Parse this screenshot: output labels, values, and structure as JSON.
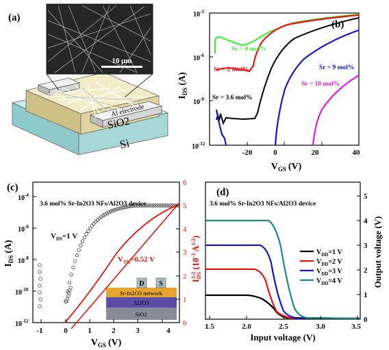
{
  "panels": {
    "a": {
      "label": "(a)",
      "scale_bar": "10 μm",
      "electrode": "Al electrode",
      "sio2": "SiO2",
      "si": "Si"
    },
    "b": {
      "label": "(b)",
      "ylabel": "I",
      "ylabel_sub": "DS",
      "ylabel_unit": "(A)",
      "xlabel": "V",
      "xlabel_sub": "GS",
      "xlabel_unit": "(V)",
      "xticks": [
        "-20",
        "0",
        "20",
        "40"
      ],
      "yticks": [
        {
          "base": "10",
          "exp": "-3"
        },
        {
          "base": "10",
          "exp": "-6"
        },
        {
          "base": "10",
          "exp": "-9"
        },
        {
          "base": "10",
          "exp": "-12"
        }
      ],
      "annotations": [
        "Sr = 0 mol%",
        "Sr = 2 mol%",
        "Sr = 3.6 mol%",
        "Sr = 9 mol%",
        "Sr = 18 mol%"
      ]
    },
    "c": {
      "label": "(c)",
      "title": "3.6 mol% Sr-In2O3 NFs/Al2O3 device",
      "vds": "V",
      "vds_sub": "DS",
      "vds_val": "=1 V",
      "vth": "V",
      "vth_sub": "TH",
      "vth_val": "=0.52 V",
      "ylabel_left": "I",
      "ylabel_left_sub": "DS",
      "ylabel_left_unit": "(A)",
      "ylabel_right": "I",
      "ylabel_right_sub": "DS",
      "ylabel_right_sup": "1/2",
      "ylabel_right_unit": "(10",
      "ylabel_right_unit_sup": "-3",
      "ylabel_right_unit2": "A",
      "ylabel_right_unit2_sup": "1/2",
      "ylabel_right_close": ")",
      "xlabel": "V",
      "xlabel_sub": "GS",
      "xlabel_unit": "(V)",
      "xticks": [
        "-1",
        "0",
        "1",
        "2",
        "3",
        "4"
      ],
      "yticks_left": [
        {
          "base": "10",
          "exp": "-4"
        },
        {
          "base": "10",
          "exp": "-6"
        },
        {
          "base": "10",
          "exp": "-8"
        },
        {
          "base": "10",
          "exp": "-10"
        },
        {
          "base": "10",
          "exp": "-12"
        }
      ],
      "yticks_right": [
        "6",
        "5",
        "4",
        "3",
        "2",
        "1",
        "0"
      ],
      "device_layers": [
        "Sr-In2O3 network",
        "Al2O3",
        "SiO2"
      ],
      "device_contacts": [
        "D",
        "S"
      ]
    },
    "d": {
      "label": "(d)",
      "title": "3.6 mol% Sr-In2O3 NFs/Al2O3 device",
      "xlabel": "Input voltage (V)",
      "ylabel": "Output voltage (V)",
      "xticks": [
        "1.5",
        "2.0",
        "2.5",
        "3.0",
        "3.5"
      ],
      "yticks": [
        "0",
        "1",
        "2",
        "3",
        "4",
        "5"
      ],
      "legend": [
        {
          "name": "V",
          "sub": "DD",
          "val": "=1 V",
          "color": "#000000"
        },
        {
          "name": "V",
          "sub": "DD",
          "val": "=2 V",
          "color": "#e8120c"
        },
        {
          "name": "V",
          "sub": "DD",
          "val": "=3 V",
          "color": "#1612c8"
        },
        {
          "name": "V",
          "sub": "DD",
          "val": "=4 V",
          "color": "#1a8a7e"
        }
      ]
    }
  },
  "colors": {
    "red": "#e8120c",
    "blue": "#1612c8",
    "green": "#3cf03c",
    "magenta": "#e01ae0",
    "teal": "#1a8a7e",
    "sio2": "#e6dcaa",
    "si": "#a6d8d8"
  }
}
